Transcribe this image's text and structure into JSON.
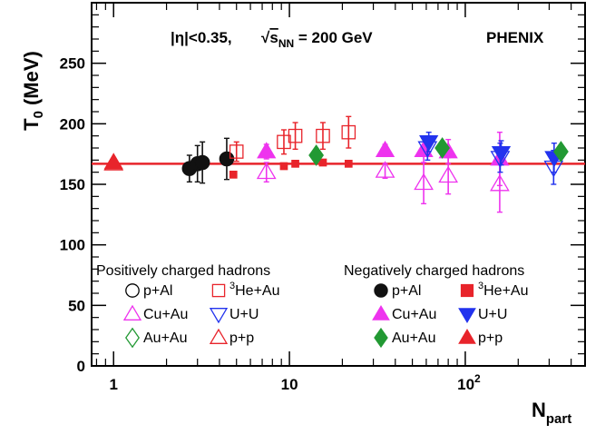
{
  "chart_data": {
    "type": "scatter",
    "x_scale": "log",
    "xlabel": "N",
    "xlabel_sub": "part",
    "ylabel": "T",
    "ylabel_sub": "0",
    "ylabel_unit": "(MeV)",
    "xlim": [
      0.75,
      480
    ],
    "ylim": [
      0,
      300
    ],
    "x_ticks": [
      {
        "value": 1,
        "label": "1"
      },
      {
        "value": 10,
        "label": "10"
      },
      {
        "value": 100,
        "label": "10",
        "sup": "2"
      }
    ],
    "y_ticks": [
      0,
      50,
      100,
      150,
      200,
      250
    ],
    "grid": false,
    "annotations": {
      "cut": "|η|<0.35,",
      "energy_pre": "√",
      "energy_s": "s",
      "energy_sub": "NN",
      "energy_post": " = 200 GeV",
      "experiment": "PHENIX"
    },
    "fit_line": {
      "y": 167,
      "color": "#e8242b"
    },
    "legend": {
      "position": "bottom",
      "headers": {
        "positive": "Positively charged hadrons",
        "negative": "Negatively charged hadrons"
      },
      "entries": [
        {
          "column": "positive",
          "row": 0,
          "col": 0,
          "label": "p+Al",
          "series": "pos_pAl"
        },
        {
          "column": "positive",
          "row": 0,
          "col": 1,
          "label": "He+Au",
          "sup": "3",
          "series": "pos_HeAu"
        },
        {
          "column": "positive",
          "row": 1,
          "col": 0,
          "label": "Cu+Au",
          "series": "pos_CuAu"
        },
        {
          "column": "positive",
          "row": 1,
          "col": 1,
          "label": "U+U",
          "series": "pos_UU"
        },
        {
          "column": "positive",
          "row": 2,
          "col": 0,
          "label": "Au+Au",
          "series": "pos_AuAu"
        },
        {
          "column": "positive",
          "row": 2,
          "col": 1,
          "label": "p+p",
          "series": "pos_pp"
        },
        {
          "column": "negative",
          "row": 0,
          "col": 0,
          "label": "p+Al",
          "series": "neg_pAl"
        },
        {
          "column": "negative",
          "row": 0,
          "col": 1,
          "label": "He+Au",
          "sup": "3",
          "series": "neg_HeAu"
        },
        {
          "column": "negative",
          "row": 1,
          "col": 0,
          "label": "Cu+Au",
          "series": "neg_CuAu"
        },
        {
          "column": "negative",
          "row": 1,
          "col": 1,
          "label": "U+U",
          "series": "neg_UU"
        },
        {
          "column": "negative",
          "row": 2,
          "col": 0,
          "label": "Au+Au",
          "series": "neg_AuAu"
        },
        {
          "column": "negative",
          "row": 2,
          "col": 1,
          "label": "p+p",
          "series": "neg_pp"
        }
      ]
    },
    "series": [
      {
        "id": "pos_pAl",
        "marker": "circle",
        "filled": false,
        "color": "#000000",
        "points": []
      },
      {
        "id": "neg_pAl",
        "marker": "circle",
        "filled": true,
        "color": "#111111",
        "points": [
          {
            "x": 2.7,
            "y": 163,
            "err": 11
          },
          {
            "x": 3.0,
            "y": 167,
            "err": 15
          },
          {
            "x": 3.2,
            "y": 168,
            "err": 17
          },
          {
            "x": 4.4,
            "y": 171,
            "err": 17
          }
        ]
      },
      {
        "id": "pos_HeAu",
        "marker": "square",
        "filled": false,
        "color": "#e8242b",
        "points": [
          {
            "x": 5.0,
            "y": 177,
            "err": 8
          },
          {
            "x": 9.3,
            "y": 185,
            "err": 10
          },
          {
            "x": 10.8,
            "y": 190,
            "err": 11
          },
          {
            "x": 15.5,
            "y": 190,
            "err": 11
          },
          {
            "x": 21.7,
            "y": 193,
            "err": 13
          }
        ]
      },
      {
        "id": "neg_HeAu",
        "marker": "square",
        "filled": true,
        "color": "#e8242b",
        "points": [
          {
            "x": 4.8,
            "y": 158,
            "err": 0
          },
          {
            "x": 9.3,
            "y": 165,
            "err": 0
          },
          {
            "x": 10.8,
            "y": 167,
            "err": 0
          },
          {
            "x": 15.5,
            "y": 168,
            "err": 0
          },
          {
            "x": 21.7,
            "y": 167,
            "err": 0
          }
        ]
      },
      {
        "id": "pos_CuAu",
        "marker": "triangle-up",
        "filled": false,
        "color": "#ee33ee",
        "points": [
          {
            "x": 7.4,
            "y": 160,
            "err": 8
          },
          {
            "x": 35,
            "y": 161,
            "err": 6
          },
          {
            "x": 58,
            "y": 151,
            "err": 17
          },
          {
            "x": 80,
            "y": 157,
            "err": 15
          },
          {
            "x": 157,
            "y": 150,
            "err": 23
          }
        ]
      },
      {
        "id": "neg_CuAu",
        "marker": "triangle-up",
        "filled": true,
        "color": "#ee33ee",
        "points": [
          {
            "x": 7.4,
            "y": 177,
            "err": 6
          },
          {
            "x": 35,
            "y": 178,
            "err": 5
          },
          {
            "x": 58,
            "y": 178,
            "err": 10
          },
          {
            "x": 80,
            "y": 177,
            "err": 10
          },
          {
            "x": 157,
            "y": 171,
            "err": 22
          }
        ]
      },
      {
        "id": "pos_UU",
        "marker": "triangle-down",
        "filled": false,
        "color": "#2233ee",
        "points": [
          {
            "x": 61,
            "y": 180,
            "err": 10
          },
          {
            "x": 158,
            "y": 172,
            "err": 12
          },
          {
            "x": 318,
            "y": 164,
            "err": 14
          }
        ]
      },
      {
        "id": "neg_UU",
        "marker": "triangle-down",
        "filled": true,
        "color": "#2233ee",
        "points": [
          {
            "x": 62,
            "y": 185,
            "err": 8
          },
          {
            "x": 160,
            "y": 176,
            "err": 10
          },
          {
            "x": 320,
            "y": 172,
            "err": 12
          }
        ]
      },
      {
        "id": "pos_AuAu",
        "marker": "diamond",
        "filled": false,
        "color": "#229933",
        "points": []
      },
      {
        "id": "neg_AuAu",
        "marker": "diamond",
        "filled": true,
        "color": "#229933",
        "points": [
          {
            "x": 14.2,
            "y": 174,
            "err": 0
          },
          {
            "x": 74,
            "y": 180,
            "err": 0
          },
          {
            "x": 350,
            "y": 177,
            "err": 0
          }
        ]
      },
      {
        "id": "pos_pp",
        "marker": "triangle-up",
        "filled": false,
        "color": "#e8242b",
        "points": [
          {
            "x": 1.0,
            "y": 167,
            "err": 0
          }
        ]
      },
      {
        "id": "neg_pp",
        "marker": "triangle-up",
        "filled": true,
        "color": "#e8242b",
        "points": [
          {
            "x": 1.0,
            "y": 168,
            "err": 0
          }
        ]
      }
    ]
  }
}
